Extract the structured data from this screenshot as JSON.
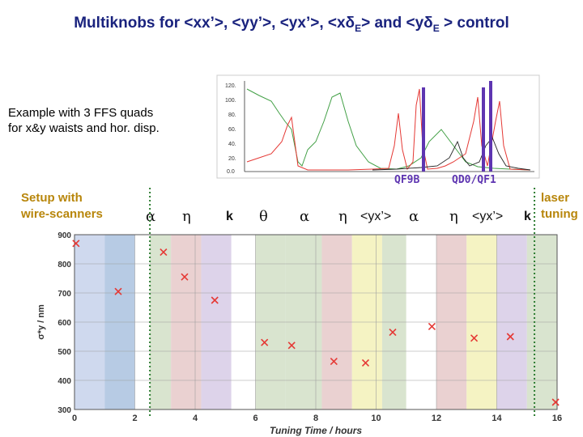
{
  "title": {
    "text_a": "Multiknobs for <xx’>, <yy’>, <yx’>, <xδ",
    "sub1": "E",
    "text_b": "> and <yδ",
    "sub2": "E",
    "text_c": " > control"
  },
  "example": {
    "line1": "Example with 3 FFS quads",
    "line2": "for x&y waists and hor. disp."
  },
  "setup": {
    "line1": "Setup with",
    "line2": "wire-scanners"
  },
  "laser": {
    "line1": "laser",
    "line2": "tuning"
  },
  "knob_labels": [
    "α",
    "η",
    "k",
    "θ",
    "α",
    "η",
    "<yx’>",
    "α",
    "η",
    "<yx’>",
    "k"
  ],
  "inset": {
    "quad1": "QF9B",
    "quad2": "QD0/QF1",
    "ytick_labels": [
      "120.",
      "100.",
      "80.",
      "60.",
      "40.",
      "20.",
      "0.0"
    ],
    "colors": {
      "red": "#e53935",
      "green": "#43a047",
      "black": "#222222",
      "purple": "#5e35b1"
    }
  },
  "chart_data": {
    "type": "scatter",
    "title": "",
    "xlabel": "Tuning Time / hours",
    "ylabel": "σ*y / nm",
    "xlim": [
      0,
      16
    ],
    "ylim": [
      300,
      900
    ],
    "xticks": [
      0,
      2,
      4,
      6,
      8,
      10,
      12,
      14,
      16
    ],
    "yticks": [
      300,
      400,
      500,
      600,
      700,
      800,
      900
    ],
    "grid": true,
    "marker": "x",
    "marker_color": "#e53935",
    "points": [
      {
        "x": 0.05,
        "y": 870
      },
      {
        "x": 1.45,
        "y": 705
      },
      {
        "x": 2.95,
        "y": 840
      },
      {
        "x": 3.65,
        "y": 755
      },
      {
        "x": 4.65,
        "y": 675
      },
      {
        "x": 6.3,
        "y": 530
      },
      {
        "x": 7.2,
        "y": 520
      },
      {
        "x": 8.6,
        "y": 465
      },
      {
        "x": 9.65,
        "y": 460
      },
      {
        "x": 10.55,
        "y": 565
      },
      {
        "x": 11.85,
        "y": 585
      },
      {
        "x": 13.25,
        "y": 545
      },
      {
        "x": 14.45,
        "y": 550
      },
      {
        "x": 15.95,
        "y": 325
      }
    ],
    "bands": [
      {
        "x0": 0,
        "x1": 1.0,
        "color": "#cfd9ee"
      },
      {
        "x0": 1.0,
        "x1": 2.0,
        "color": "#b7cbe4"
      },
      {
        "x0": 2.0,
        "x1": 2.5,
        "color": "#ffffff"
      },
      {
        "x0": 2.5,
        "x1": 3.2,
        "color": "#d9e4cf"
      },
      {
        "x0": 3.2,
        "x1": 4.2,
        "color": "#ead1d1"
      },
      {
        "x0": 4.2,
        "x1": 5.2,
        "color": "#ddd3ea"
      },
      {
        "x0": 5.2,
        "x1": 6.0,
        "color": "#ffffff"
      },
      {
        "x0": 6.0,
        "x1": 7.0,
        "color": "#d9e4cf"
      },
      {
        "x0": 7.0,
        "x1": 8.2,
        "color": "#d9e4cf"
      },
      {
        "x0": 8.2,
        "x1": 9.2,
        "color": "#ead1d1"
      },
      {
        "x0": 9.2,
        "x1": 10.2,
        "color": "#f5f3c3"
      },
      {
        "x0": 10.2,
        "x1": 11.0,
        "color": "#d9e4cf"
      },
      {
        "x0": 11.0,
        "x1": 12.0,
        "color": "#ffffff"
      },
      {
        "x0": 12.0,
        "x1": 13.0,
        "color": "#ead1d1"
      },
      {
        "x0": 13.0,
        "x1": 14.0,
        "color": "#f5f3c3"
      },
      {
        "x0": 14.0,
        "x1": 15.0,
        "color": "#ddd3ea"
      },
      {
        "x0": 15.0,
        "x1": 16.0,
        "color": "#d9e4cf"
      }
    ],
    "separators": [
      2.5,
      15.25
    ],
    "separator_color": "#2e7d32"
  }
}
